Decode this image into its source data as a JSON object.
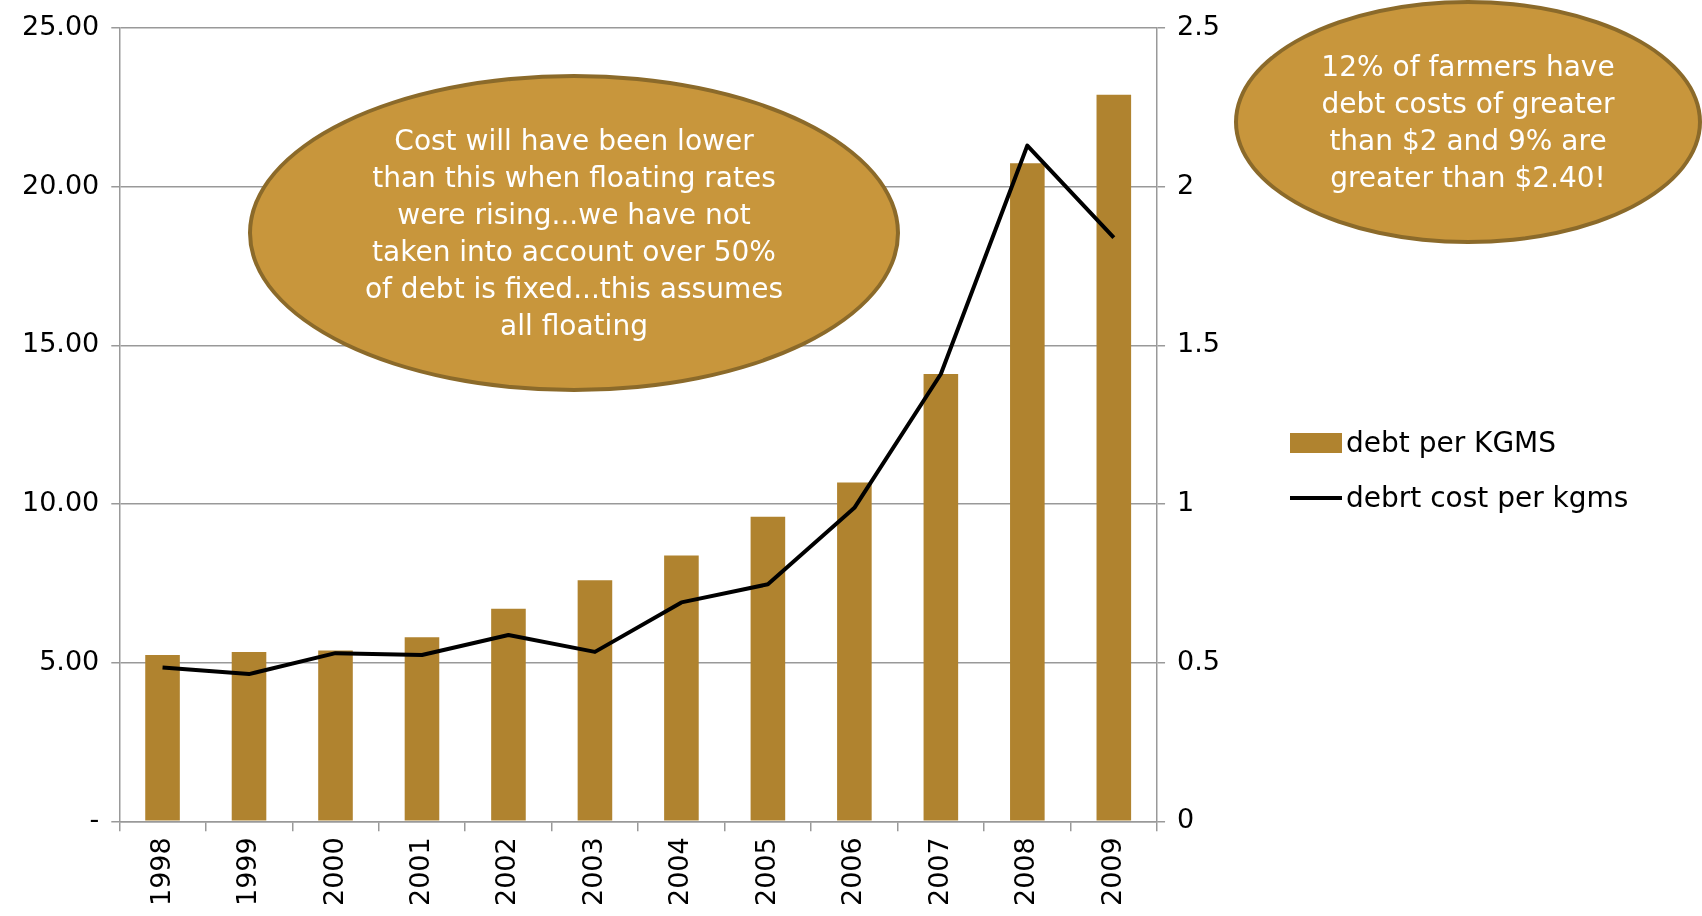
{
  "chart_data": {
    "type": "bar",
    "categories": [
      "1998",
      "1999",
      "2000",
      "2001",
      "2002",
      "2003",
      "2004",
      "2005",
      "2006",
      "2007",
      "2008",
      "2009"
    ],
    "series": [
      {
        "name": "debt per KGMS",
        "color": "#b0832f",
        "values": [
          5.24,
          5.34,
          5.38,
          5.8,
          6.7,
          7.6,
          8.38,
          9.6,
          10.68,
          14.1,
          20.74,
          22.9
        ]
      },
      {
        "name": "debrt cost per kgms",
        "type": "line",
        "axis": "y2",
        "color": "#000000",
        "values": [
          0.485,
          0.464,
          0.53,
          0.524,
          0.587,
          0.534,
          0.69,
          0.747,
          0.988,
          1.41,
          2.13,
          1.84
        ]
      }
    ],
    "ylim": [
      0,
      25
    ],
    "yticks": [
      {
        "value": 0,
        "label": "-"
      },
      {
        "value": 5,
        "label": "5.00"
      },
      {
        "value": 10,
        "label": "10.00"
      },
      {
        "value": 15,
        "label": "15.00"
      },
      {
        "value": 20,
        "label": "20.00"
      },
      {
        "value": 25,
        "label": "25.00"
      }
    ],
    "y2lim": [
      0,
      2.5
    ],
    "y2ticks": [
      0,
      0.5,
      1,
      1.5,
      2,
      2.5
    ],
    "grid": "y",
    "legend": "right",
    "marker": "none",
    "line_style": "solid",
    "annotations": [
      "Cost will have been lower than this when floating rates were rising...we have not taken into account over 50% of debt is fixed...this assumes all floating",
      "12% of farmers have debt costs of greater than $2 and 9% are greater than $2.40!"
    ]
  }
}
